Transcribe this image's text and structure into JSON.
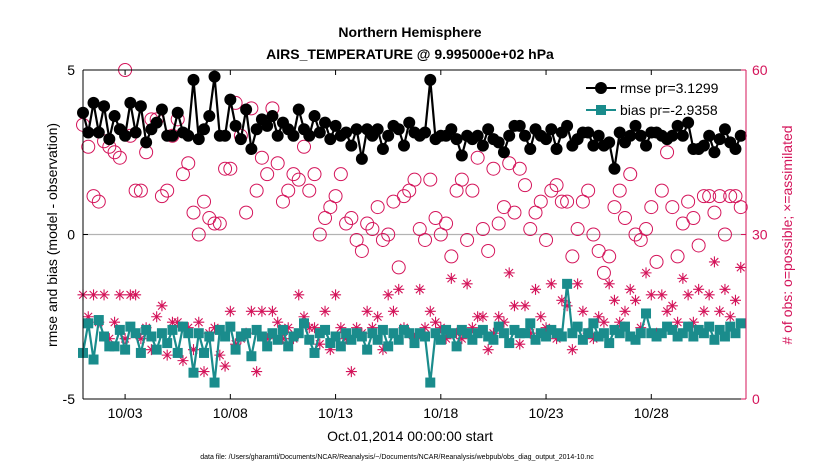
{
  "colors": {
    "rmse": "#000000",
    "bias": "#1a8c8c",
    "obs": "#d4145a",
    "zero_line": "#b3b3b3",
    "axis": "#000000"
  },
  "chart_data": {
    "type": "line",
    "title": "Northern Hemisphere",
    "subtitle": "AIRS_TEMPERATURE @ 9.995000e+02 hPa",
    "xlabel": "Oct.01,2014 00:00:00 start",
    "ylabel": "rmse and bias (model - observation)",
    "y2label": "# of obs: o=possible; ×=assimilated",
    "footer": "data file: /Users/gharamti/Documents/NCAR/Reanalysis/~/Documents/NCAR/Reanalysis/webpub/obs_diag_output_2014-10.nc",
    "x_range": [
      1.0,
      32.5
    ],
    "ylim": [
      -5,
      5
    ],
    "y2lim": [
      0,
      60
    ],
    "y_ticks": [
      -5,
      0,
      5
    ],
    "y2_ticks": [
      0,
      30,
      60
    ],
    "x_ticks": [
      {
        "x": 3,
        "label": "10/03"
      },
      {
        "x": 8,
        "label": "10/08"
      },
      {
        "x": 13,
        "label": "10/13"
      },
      {
        "x": 18,
        "label": "10/18"
      },
      {
        "x": 23,
        "label": "10/23"
      },
      {
        "x": 28,
        "label": "10/28"
      }
    ],
    "legend_position": "top-right",
    "series": [
      {
        "name": "rmse",
        "legend": "rmse pr=3.1299",
        "marker": "circle",
        "axis": "left",
        "x": [
          1.0,
          1.25,
          1.5,
          1.75,
          2.0,
          2.25,
          2.5,
          2.75,
          3.0,
          3.25,
          3.5,
          3.75,
          4.0,
          4.25,
          4.5,
          4.75,
          5.0,
          5.25,
          5.5,
          5.75,
          6.0,
          6.25,
          6.5,
          6.75,
          7.0,
          7.25,
          7.5,
          7.75,
          8.0,
          8.25,
          8.5,
          8.75,
          9.0,
          9.25,
          9.5,
          9.75,
          10.0,
          10.25,
          10.5,
          10.75,
          11.0,
          11.25,
          11.5,
          11.75,
          12.0,
          12.25,
          12.5,
          12.75,
          13.0,
          13.25,
          13.5,
          13.75,
          14.0,
          14.25,
          14.5,
          14.75,
          15.0,
          15.25,
          15.5,
          15.75,
          16.0,
          16.25,
          16.5,
          16.75,
          17.0,
          17.25,
          17.5,
          17.75,
          18.0,
          18.25,
          18.5,
          18.75,
          19.0,
          19.25,
          19.5,
          19.75,
          20.0,
          20.25,
          20.5,
          20.75,
          21.0,
          21.25,
          21.5,
          21.75,
          22.0,
          22.25,
          22.5,
          22.75,
          23.0,
          23.25,
          23.5,
          23.75,
          24.0,
          24.25,
          24.5,
          24.75,
          25.0,
          25.25,
          25.5,
          25.75,
          26.0,
          26.25,
          26.5,
          26.75,
          27.0,
          27.25,
          27.5,
          27.75,
          28.0,
          28.25,
          28.5,
          28.75,
          29.0,
          29.25,
          29.5,
          29.75,
          30.0,
          30.25,
          30.5,
          30.75,
          31.0,
          31.25,
          31.5,
          31.75,
          32.0,
          32.25
        ],
        "y": [
          3.7,
          3.1,
          4.0,
          3.1,
          3.9,
          2.9,
          3.6,
          3.2,
          3.0,
          4.0,
          3.1,
          3.9,
          2.8,
          3.2,
          3.4,
          3.8,
          3.0,
          3.0,
          3.7,
          3.1,
          3.0,
          4.7,
          2.9,
          3.2,
          3.6,
          4.8,
          3.0,
          3.0,
          4.1,
          3.3,
          2.9,
          3.8,
          2.6,
          3.2,
          3.5,
          3.3,
          3.6,
          3.0,
          3.4,
          3.2,
          3.0,
          3.8,
          3.2,
          3.0,
          3.6,
          3.1,
          3.4,
          2.9,
          3.3,
          3.0,
          3.1,
          2.7,
          3.2,
          2.3,
          3.2,
          3.0,
          3.2,
          2.6,
          3.0,
          3.3,
          3.2,
          2.7,
          3.4,
          3.1,
          3.0,
          3.1,
          4.7,
          2.9,
          3.0,
          3.0,
          3.2,
          2.9,
          2.4,
          3.0,
          2.9,
          3.0,
          2.7,
          3.2,
          2.9,
          2.8,
          2.5,
          3.0,
          3.3,
          3.3,
          3.0,
          2.6,
          3.2,
          3.0,
          2.9,
          3.2,
          2.6,
          3.1,
          3.3,
          2.7,
          2.9,
          3.1,
          3.1,
          2.7,
          3.0,
          2.7,
          2.8,
          2.0,
          3.1,
          2.8,
          3.0,
          3.3,
          3.0,
          2.7,
          3.1,
          3.1,
          3.0,
          2.9,
          3.0,
          3.3,
          3.0,
          3.4,
          2.6,
          2.6,
          2.7,
          3.0,
          2.5,
          2.9,
          3.2,
          2.8,
          2.6,
          3.0
        ]
      },
      {
        "name": "bias",
        "legend": "bias pr=-2.9358",
        "marker": "square",
        "axis": "left",
        "x": [
          1.0,
          1.25,
          1.5,
          1.75,
          2.0,
          2.25,
          2.5,
          2.75,
          3.0,
          3.25,
          3.5,
          3.75,
          4.0,
          4.25,
          4.5,
          4.75,
          5.0,
          5.25,
          5.5,
          5.75,
          6.0,
          6.25,
          6.5,
          6.75,
          7.0,
          7.25,
          7.5,
          7.75,
          8.0,
          8.25,
          8.5,
          8.75,
          9.0,
          9.25,
          9.5,
          9.75,
          10.0,
          10.25,
          10.5,
          10.75,
          11.0,
          11.25,
          11.5,
          11.75,
          12.0,
          12.25,
          12.5,
          12.75,
          13.0,
          13.25,
          13.5,
          13.75,
          14.0,
          14.25,
          14.5,
          14.75,
          15.0,
          15.25,
          15.5,
          15.75,
          16.0,
          16.25,
          16.5,
          16.75,
          17.0,
          17.25,
          17.5,
          17.75,
          18.0,
          18.25,
          18.5,
          18.75,
          19.0,
          19.25,
          19.5,
          19.75,
          20.0,
          20.25,
          20.5,
          20.75,
          21.0,
          21.25,
          21.5,
          21.75,
          22.0,
          22.25,
          22.5,
          22.75,
          23.0,
          23.25,
          23.5,
          23.75,
          24.0,
          24.25,
          24.5,
          24.75,
          25.0,
          25.25,
          25.5,
          25.75,
          26.0,
          26.25,
          26.5,
          26.75,
          27.0,
          27.25,
          27.5,
          27.75,
          28.0,
          28.25,
          28.5,
          28.75,
          29.0,
          29.25,
          29.5,
          29.75,
          30.0,
          30.25,
          30.5,
          30.75,
          31.0,
          31.25,
          31.5,
          31.75,
          32.0,
          32.25
        ],
        "y": [
          -3.6,
          -2.7,
          -3.8,
          -2.6,
          -3.1,
          -3.4,
          -3.4,
          -2.9,
          -3.5,
          -2.8,
          -3.0,
          -3.6,
          -2.9,
          -3.1,
          -3.5,
          -3.0,
          -3.3,
          -2.9,
          -3.6,
          -2.8,
          -3.0,
          -4.2,
          -3.0,
          -3.6,
          -3.1,
          -4.5,
          -2.9,
          -3.1,
          -2.8,
          -3.5,
          -3.1,
          -3.0,
          -3.7,
          -2.9,
          -3.1,
          -3.4,
          -3.0,
          -3.2,
          -2.9,
          -3.4,
          -3.1,
          -3.0,
          -2.7,
          -3.2,
          -3.6,
          -3.0,
          -2.9,
          -3.3,
          -3.1,
          -3.4,
          -3.0,
          -3.2,
          -3.0,
          -3.1,
          -3.5,
          -3.0,
          -3.2,
          -2.9,
          -3.4,
          -3.0,
          -3.2,
          -2.9,
          -3.0,
          -3.3,
          -3.0,
          -3.1,
          -4.5,
          -3.0,
          -3.2,
          -2.9,
          -3.0,
          -3.4,
          -2.9,
          -3.0,
          -3.2,
          -3.0,
          -2.9,
          -3.1,
          -3.2,
          -2.8,
          -3.0,
          -3.3,
          -2.9,
          -3.0,
          -3.0,
          -2.7,
          -3.2,
          -3.0,
          -3.1,
          -2.9,
          -3.0,
          -3.1,
          -1.5,
          -3.0,
          -2.8,
          -3.2,
          -3.0,
          -2.7,
          -3.1,
          -3.0,
          -3.3,
          -2.9,
          -3.0,
          -2.8,
          -3.1,
          -3.2,
          -3.0,
          -2.4,
          -3.0,
          -3.1,
          -3.0,
          -2.8,
          -2.9,
          -3.1,
          -3.0,
          -2.8,
          -3.1,
          -2.9,
          -3.0,
          -2.8,
          -3.2,
          -2.9,
          -3.1,
          -2.8,
          -3.0,
          -2.7
        ]
      },
      {
        "name": "possible",
        "marker": "open-circle",
        "axis": "right",
        "x": [
          1.0,
          1.25,
          1.5,
          1.75,
          2.0,
          2.25,
          2.5,
          2.75,
          3.0,
          3.25,
          3.5,
          3.75,
          4.0,
          4.25,
          4.5,
          4.75,
          5.0,
          5.25,
          5.5,
          5.75,
          6.0,
          6.25,
          6.5,
          6.75,
          7.0,
          7.25,
          7.5,
          7.75,
          8.0,
          8.25,
          8.5,
          8.75,
          9.0,
          9.25,
          9.5,
          9.75,
          10.0,
          10.25,
          10.5,
          10.75,
          11.0,
          11.25,
          11.5,
          11.75,
          12.0,
          12.25,
          12.5,
          12.75,
          13.0,
          13.25,
          13.5,
          13.75,
          14.0,
          14.25,
          14.5,
          14.75,
          15.0,
          15.25,
          15.5,
          15.75,
          16.0,
          16.25,
          16.5,
          16.75,
          17.0,
          17.25,
          17.5,
          17.75,
          18.0,
          18.25,
          18.5,
          18.75,
          19.0,
          19.25,
          19.5,
          19.75,
          20.0,
          20.25,
          20.5,
          20.75,
          21.0,
          21.25,
          21.5,
          21.75,
          22.0,
          22.25,
          22.5,
          22.75,
          23.0,
          23.25,
          23.5,
          23.75,
          24.0,
          24.25,
          24.5,
          24.75,
          25.0,
          25.25,
          25.5,
          25.75,
          26.0,
          26.25,
          26.5,
          26.75,
          27.0,
          27.25,
          27.5,
          27.75,
          28.0,
          28.25,
          28.5,
          28.75,
          29.0,
          29.25,
          29.5,
          29.75,
          30.0,
          30.25,
          30.5,
          30.75,
          31.0,
          31.25,
          31.5,
          31.75,
          32.0,
          32.25
        ],
        "y": [
          50,
          46,
          37,
          36,
          47,
          46,
          45,
          44,
          60,
          48,
          38,
          38,
          45,
          51,
          51,
          37,
          38,
          48,
          51,
          41,
          43,
          34,
          30,
          36,
          33,
          32,
          32,
          42,
          42,
          54,
          48,
          34,
          53,
          38,
          44,
          41,
          53,
          43,
          36,
          38,
          41,
          40,
          46,
          38,
          41,
          30,
          33,
          35,
          37,
          41,
          32,
          33,
          29,
          27,
          32,
          31,
          35,
          29,
          30,
          36,
          24,
          37,
          38,
          40,
          31,
          29,
          40,
          33,
          30,
          32,
          26,
          38,
          40,
          29,
          38,
          44,
          31,
          27,
          42,
          32,
          35,
          43,
          34,
          42,
          39,
          31,
          34,
          36,
          29,
          38,
          39,
          36,
          36,
          26,
          31,
          36,
          38,
          30,
          27,
          23,
          26,
          35,
          38,
          33,
          41,
          30,
          29,
          31,
          35,
          25,
          38,
          45,
          35,
          26,
          32,
          36,
          33,
          28,
          37,
          37,
          34,
          37,
          30,
          37,
          37,
          35
        ]
      },
      {
        "name": "assimilated",
        "marker": "asterisk",
        "axis": "right",
        "x": [
          1.0,
          1.25,
          1.5,
          1.75,
          2.0,
          2.25,
          2.5,
          2.75,
          3.0,
          3.25,
          3.5,
          3.75,
          4.0,
          4.25,
          4.5,
          4.75,
          5.0,
          5.25,
          5.5,
          5.75,
          6.0,
          6.25,
          6.5,
          6.75,
          7.0,
          7.25,
          7.5,
          7.75,
          8.0,
          8.25,
          8.5,
          8.75,
          9.0,
          9.25,
          9.5,
          9.75,
          10.0,
          10.25,
          10.5,
          10.75,
          11.0,
          11.25,
          11.5,
          11.75,
          12.0,
          12.25,
          12.5,
          12.75,
          13.0,
          13.25,
          13.5,
          13.75,
          14.0,
          14.25,
          14.5,
          14.75,
          15.0,
          15.25,
          15.5,
          15.75,
          16.0,
          16.25,
          16.5,
          16.75,
          17.0,
          17.25,
          17.5,
          17.75,
          18.0,
          18.25,
          18.5,
          18.75,
          19.0,
          19.25,
          19.5,
          19.75,
          20.0,
          20.25,
          20.5,
          20.75,
          21.0,
          21.25,
          21.5,
          21.75,
          22.0,
          22.25,
          22.5,
          22.75,
          23.0,
          23.25,
          23.5,
          23.75,
          24.0,
          24.25,
          24.5,
          24.75,
          25.0,
          25.25,
          25.5,
          25.75,
          26.0,
          26.25,
          26.5,
          26.75,
          27.0,
          27.25,
          27.5,
          27.75,
          28.0,
          28.25,
          28.5,
          28.75,
          29.0,
          29.25,
          29.5,
          29.75,
          30.0,
          30.25,
          30.5,
          30.75,
          31.0,
          31.25,
          31.5,
          31.75,
          32.0,
          32.25
        ],
        "y": [
          19,
          15,
          19,
          14,
          19,
          11,
          14,
          19,
          11,
          19,
          19,
          11,
          13,
          9,
          15,
          17,
          8,
          14,
          14,
          7,
          13,
          9,
          14,
          5,
          12,
          13,
          8,
          6,
          16,
          10,
          11,
          12,
          16,
          5,
          16,
          11,
          16,
          14,
          11,
          13,
          11,
          19,
          15,
          13,
          13,
          10,
          16,
          9,
          19,
          13,
          11,
          5,
          13,
          12,
          16,
          13,
          15,
          9,
          19,
          16,
          20,
          13,
          12,
          11,
          20,
          13,
          16,
          14,
          13,
          11,
          22,
          12,
          11,
          21,
          13,
          15,
          15,
          9,
          12,
          15,
          14,
          23,
          17,
          10,
          17,
          12,
          20,
          15,
          13,
          21,
          11,
          18,
          17,
          9,
          21,
          16,
          12,
          11,
          15,
          14,
          21,
          18,
          14,
          16,
          20,
          18,
          13,
          23,
          19,
          12,
          19,
          16,
          17,
          14,
          22,
          19,
          14,
          20,
          16,
          19,
          25,
          16,
          20,
          15,
          18,
          24
        ]
      }
    ]
  }
}
